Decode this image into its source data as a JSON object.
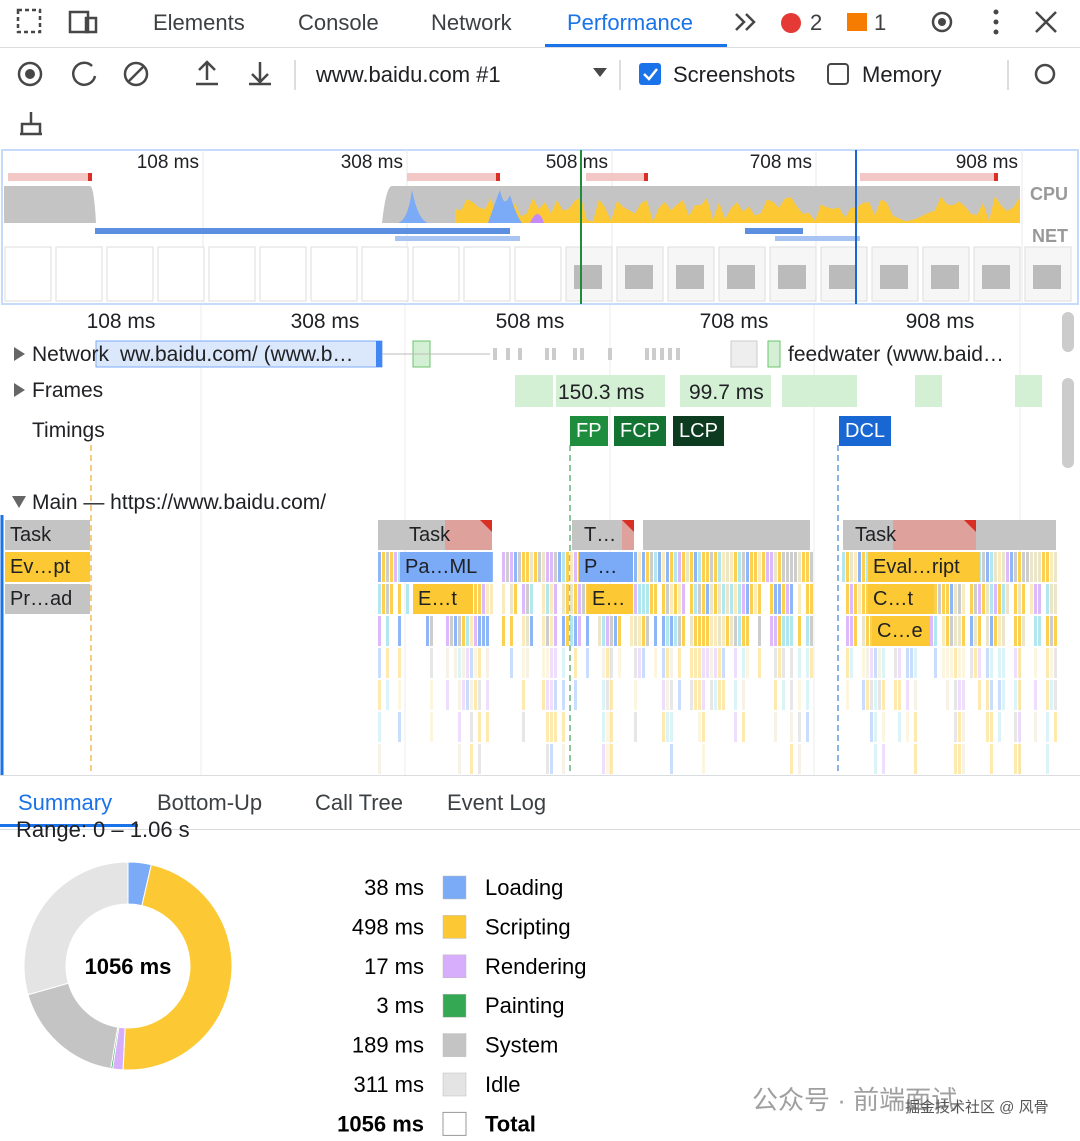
{
  "tabs": [
    "Elements",
    "Console",
    "Network",
    "Performance"
  ],
  "badges": {
    "errors": "2",
    "warnings": "1"
  },
  "toolbar": {
    "target": "www.baidu.com #1",
    "screenshots": "Screenshots",
    "memory": "Memory"
  },
  "overview": {
    "ticks": [
      "108 ms",
      "308 ms",
      "508 ms",
      "708 ms",
      "908 ms"
    ],
    "cpu": "CPU",
    "net": "NET"
  },
  "ruler": {
    "ticks": [
      "108 ms",
      "308 ms",
      "508 ms",
      "708 ms",
      "908 ms"
    ]
  },
  "tracks": {
    "network": {
      "name": "Network",
      "requests": [
        "ww.baidu.com/ (www.b…",
        "feedwater (www.baid…"
      ]
    },
    "frames": {
      "name": "Frames",
      "durations": [
        "150.3 ms",
        "99.7 ms"
      ]
    },
    "timings": {
      "name": "Timings",
      "markers": [
        "FP",
        "FCP",
        "LCP",
        "DCL"
      ]
    },
    "main": {
      "name": "Main — https://www.baidu.com/",
      "events": [
        "Task",
        "Ev…pt",
        "Pr…ad",
        "Task",
        "Pa…ML",
        "E…t",
        "T…",
        "P…",
        "E…",
        "Task",
        "Eval…ript",
        "C…t",
        "C…e"
      ]
    }
  },
  "bottom_tabs": [
    "Summary",
    "Bottom-Up",
    "Call Tree",
    "Event Log"
  ],
  "summary": {
    "range": "Range: 0 – 1.06 s",
    "categories": [
      "Loading",
      "Scripting",
      "Rendering",
      "Painting",
      "System",
      "Idle"
    ],
    "values": [
      38,
      498,
      17,
      3,
      189,
      311
    ],
    "value_labels": [
      "38 ms",
      "498 ms",
      "17 ms",
      "3 ms",
      "189 ms",
      "311 ms"
    ],
    "colors": [
      "#7baaf7",
      "#fcc934",
      "#d7aefb",
      "#34a853",
      "#c4c4c4",
      "#e4e4e4"
    ],
    "total": 1056,
    "total_label": "1056 ms",
    "total_name": "Total"
  },
  "watermark": {
    "channel": "公众号 · 前端面试",
    "credit": "掘金技术社区 @ 风骨"
  }
}
